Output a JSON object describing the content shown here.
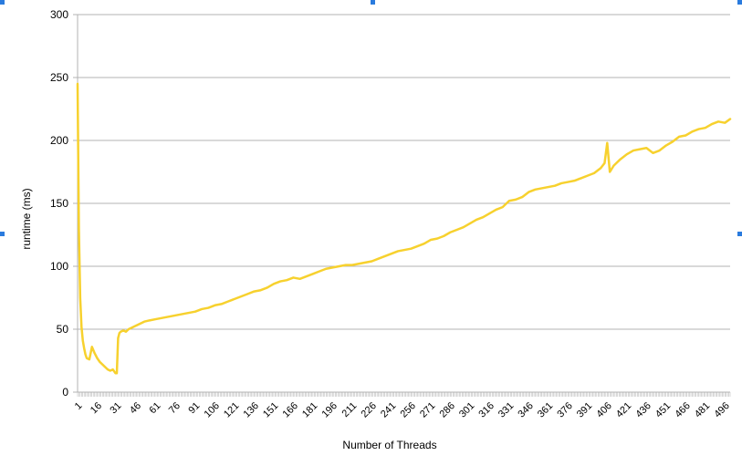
{
  "chart_data": {
    "type": "line",
    "xlabel": "Number of Threads",
    "ylabel": "runtime (ms)",
    "ylim": [
      0,
      300
    ],
    "yticks": [
      0,
      50,
      100,
      150,
      200,
      250,
      300
    ],
    "x_range": [
      1,
      500
    ],
    "xticks": [
      1,
      16,
      31,
      46,
      61,
      76,
      91,
      106,
      121,
      136,
      151,
      166,
      181,
      196,
      211,
      226,
      241,
      256,
      271,
      286,
      301,
      316,
      331,
      346,
      361,
      376,
      391,
      406,
      421,
      436,
      451,
      466,
      481,
      496
    ],
    "grid": "horizontal",
    "legend": "none",
    "line_color": "#f7d12e",
    "series": [
      {
        "x": [
          1,
          2,
          3,
          4,
          5,
          6,
          7,
          8,
          10,
          12,
          14,
          16,
          18,
          20,
          22,
          24,
          26,
          28,
          30,
          31,
          32,
          33,
          34,
          36,
          38,
          40,
          44,
          48,
          52,
          56,
          61,
          66,
          71,
          76,
          81,
          86,
          91,
          96,
          101,
          106,
          111,
          116,
          121,
          126,
          131,
          136,
          141,
          146,
          151,
          156,
          161,
          166,
          171,
          176,
          181,
          186,
          191,
          196,
          201,
          206,
          211,
          216,
          221,
          226,
          231,
          236,
          241,
          246,
          251,
          256,
          261,
          266,
          271,
          276,
          281,
          286,
          291,
          296,
          301,
          306,
          311,
          316,
          321,
          326,
          331,
          336,
          341,
          346,
          351,
          356,
          361,
          366,
          371,
          376,
          381,
          386,
          391,
          396,
          401,
          404,
          406,
          408,
          411,
          416,
          421,
          426,
          431,
          436,
          441,
          446,
          451,
          456,
          461,
          466,
          471,
          476,
          481,
          486,
          491,
          496,
          500
        ],
        "y": [
          245,
          130,
          75,
          52,
          41,
          35,
          30,
          27,
          26,
          36,
          31,
          27,
          24,
          22,
          20,
          18,
          17,
          18,
          15,
          15,
          43,
          47,
          48,
          49,
          48,
          50,
          52,
          54,
          56,
          57,
          58,
          59,
          60,
          61,
          62,
          63,
          64,
          66,
          67,
          69,
          70,
          72,
          74,
          76,
          78,
          80,
          81,
          83,
          86,
          88,
          89,
          91,
          90,
          92,
          94,
          96,
          98,
          99,
          100,
          101,
          101,
          102,
          103,
          104,
          106,
          108,
          110,
          112,
          113,
          114,
          116,
          118,
          121,
          122,
          124,
          127,
          129,
          131,
          134,
          137,
          139,
          142,
          145,
          147,
          152,
          153,
          155,
          159,
          161,
          162,
          163,
          164,
          166,
          167,
          168,
          170,
          172,
          174,
          178,
          182,
          198,
          175,
          180,
          185,
          189,
          192,
          193,
          194,
          190,
          192,
          196,
          199,
          203,
          204,
          207,
          209,
          210,
          213,
          215,
          214,
          217
        ]
      }
    ]
  }
}
